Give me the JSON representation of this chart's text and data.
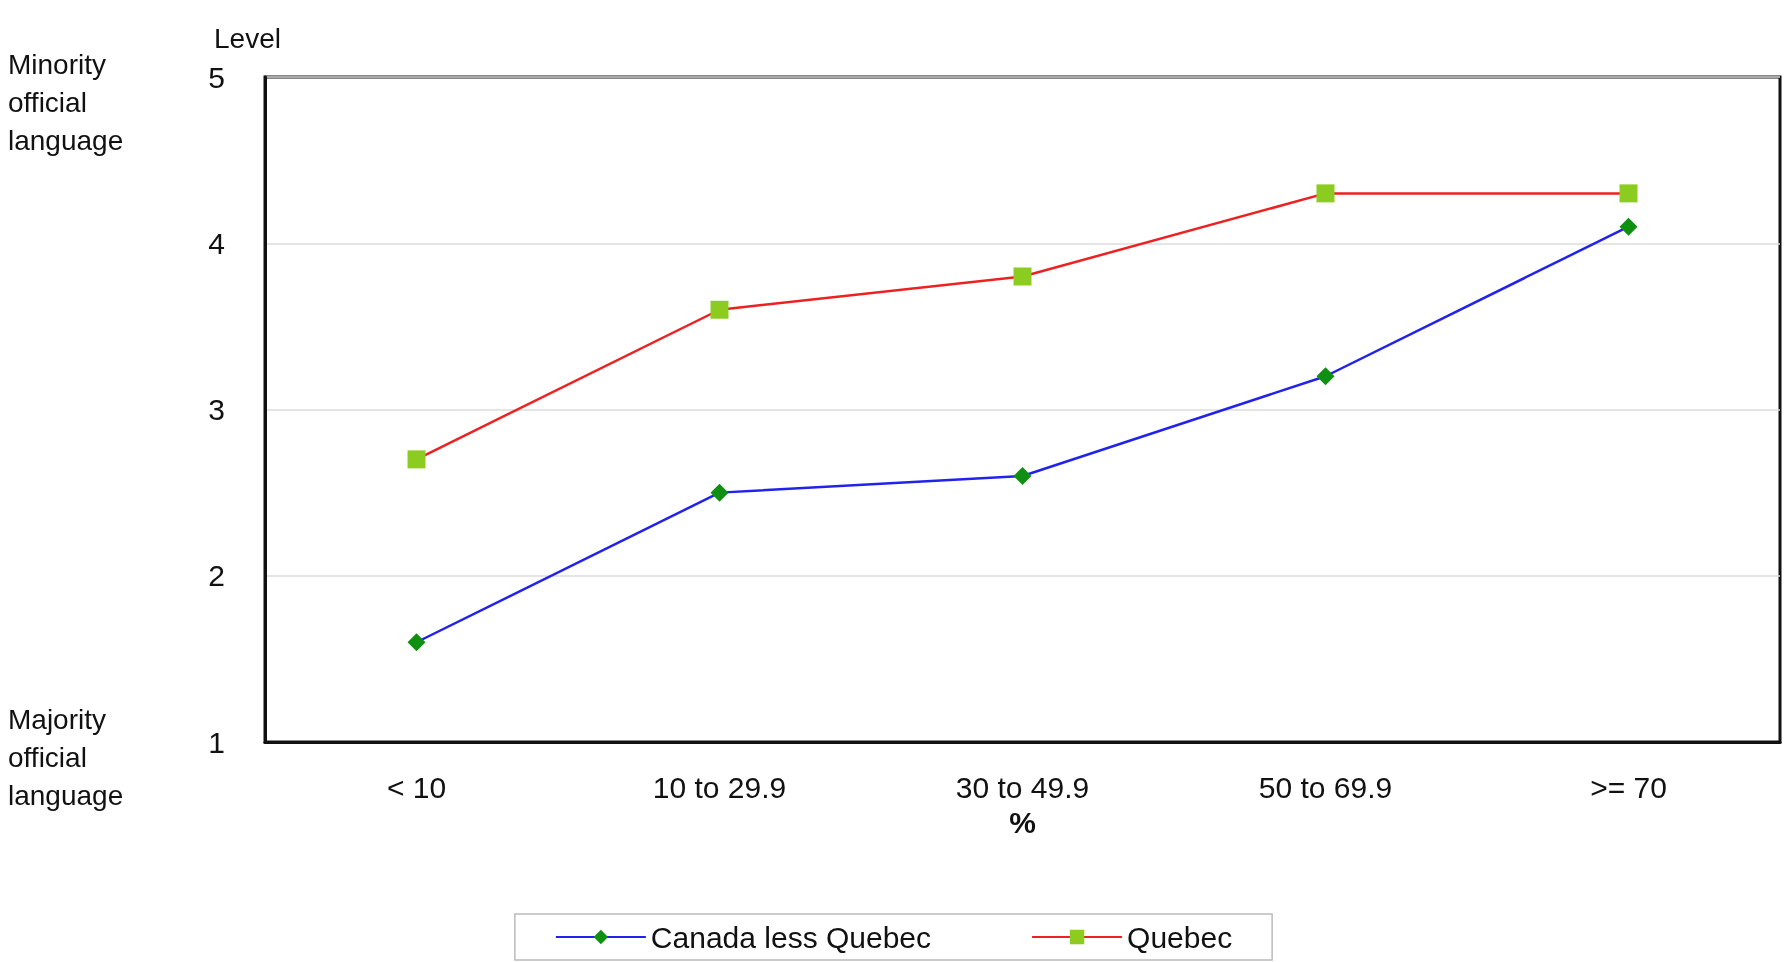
{
  "chart_data": {
    "type": "line",
    "ylabel": "Level",
    "xlabel": "%",
    "categories": [
      "< 10",
      "10 to 29.9",
      "30 to 49.9",
      "50 to 69.9",
      ">= 70"
    ],
    "series": [
      {
        "name": "Canada less Quebec",
        "color": "#2222ee",
        "colors": [
          "#109010",
          "#109010",
          "#109010",
          "#109010",
          "#109010"
        ],
        "marker": "diamond",
        "values": [
          1.6,
          2.5,
          2.6,
          3.2,
          4.1
        ]
      },
      {
        "name": "Quebec",
        "color": "#ee2020",
        "colors": [
          "#8ccc20",
          "#8ccc20",
          "#8ccc20",
          "#8ccc20",
          "#8ccc20"
        ],
        "marker": "square",
        "values": [
          2.7,
          3.6,
          3.8,
          4.3,
          4.3
        ]
      }
    ],
    "ylim": [
      1,
      5
    ],
    "yticks": [
      1,
      2,
      3,
      4,
      5
    ],
    "grid": "y",
    "legend": "bottom",
    "line_style": "solid",
    "annotations": [
      "Minority official language",
      "Majority official language"
    ]
  }
}
